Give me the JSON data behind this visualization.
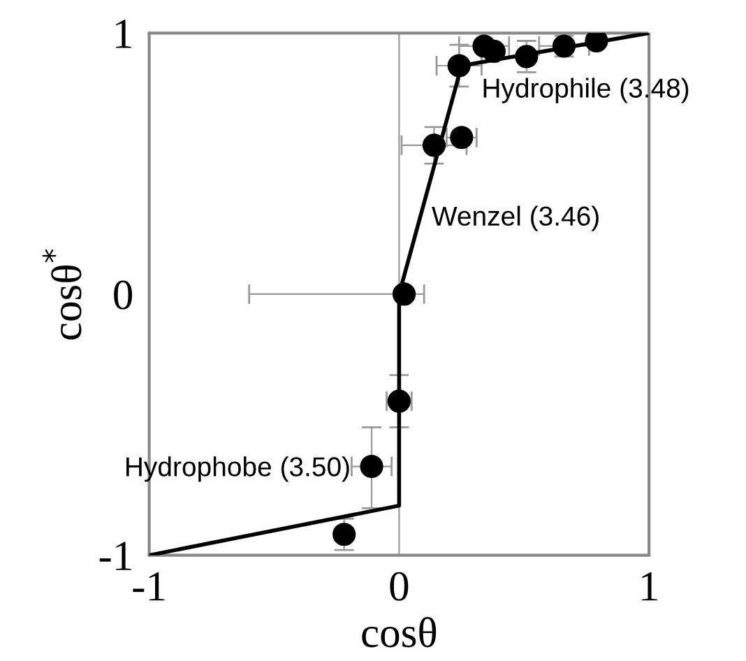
{
  "chart_data": {
    "type": "scatter",
    "xlabel": "cosθ",
    "ylabel": "cosθ$^{*}$",
    "xlim": [
      -1,
      1
    ],
    "ylim": [
      -1,
      1
    ],
    "xticks": [
      -1,
      0,
      1
    ],
    "yticks": [
      -1,
      0,
      1
    ],
    "grid": false,
    "legend": false,
    "series": [
      {
        "color": "#000000",
        "marker": "circle",
        "x": [
          0.34,
          0.38,
          0.24,
          0.51,
          0.66,
          0.79,
          0.14,
          0.25,
          0.02,
          0.0,
          -0.11,
          -0.22
        ],
        "values": [
          0.95,
          0.93,
          0.875,
          0.91,
          0.95,
          0.97,
          0.57,
          0.6,
          0.0,
          -0.41,
          -0.66,
          -0.92
        ],
        "errors": [
          null,
          null,
          0.08,
          0.06,
          0.04,
          null,
          0.07,
          null,
          null,
          0.1,
          [
            -0.82,
            -0.51
          ],
          0.06
        ],
        "xerrors": [
          0.1,
          null,
          0.09,
          null,
          0.1,
          null,
          0.13,
          0.06,
          [
            -0.6,
            0.1
          ],
          0.05,
          0.08,
          null
        ]
      },
      {
        "type": "line",
        "color": "#000000",
        "marker": "none",
        "line_style": "solid",
        "x": [
          -1,
          0,
          0,
          0.25,
          1
        ],
        "values": [
          -1,
          -0.81,
          0,
          0.875,
          1
        ]
      }
    ],
    "ref_lines": [
      {
        "axis": "x",
        "value": 0,
        "color": "#999999"
      }
    ],
    "annotations": [
      "Hydrophile (3.48)",
      "Wenzel (3.46)",
      "Hydrophobe (3.50)"
    ]
  }
}
